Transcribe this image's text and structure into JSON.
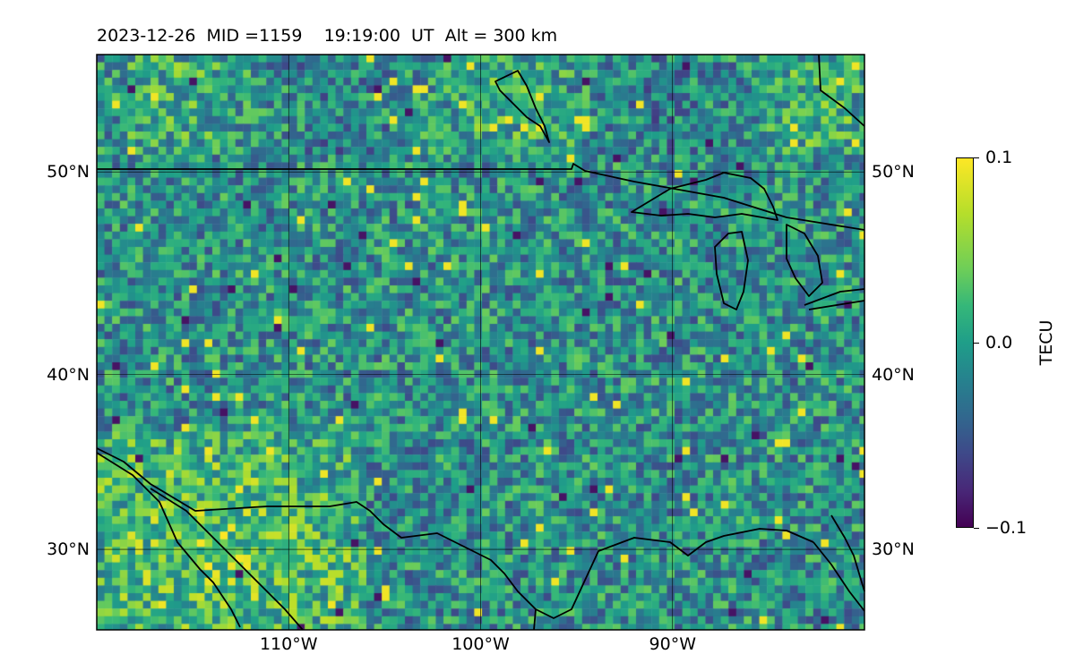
{
  "header": {
    "title": "2023-12-26  MID =1159    19:19:00  UT  Alt = 300 km"
  },
  "map": {
    "extent": {
      "lon_min": -120,
      "lon_max": -80,
      "lat_min": 25,
      "lat_max": 55
    },
    "lon_ticks": [
      {
        "value": -110,
        "label": "110°W"
      },
      {
        "value": -100,
        "label": "100°W"
      },
      {
        "value": -90,
        "label": "90°W"
      }
    ],
    "lat_ticks": [
      {
        "value": 30,
        "label": "30°N"
      },
      {
        "value": 40,
        "label": "40°N"
      },
      {
        "value": 50,
        "label": "50°N"
      }
    ],
    "gridlines": true,
    "coastlines": true,
    "colormap": "viridis",
    "features": [
      "US-Canada border",
      "Great Lakes",
      "Gulf of Mexico coast",
      "Mexico coastline"
    ]
  },
  "colorbar": {
    "label": "TECU",
    "min": -0.1,
    "max": 0.1,
    "ticks": [
      {
        "value": 0.1,
        "label": "0.1"
      },
      {
        "value": 0.0,
        "label": "0.0"
      },
      {
        "value": -0.1,
        "label": "−0.1"
      }
    ]
  },
  "colors": {
    "viridis": [
      "#440154",
      "#482878",
      "#3e4989",
      "#31688e",
      "#26828e",
      "#1f9e89",
      "#35b779",
      "#6ece58",
      "#b5de2b",
      "#fde725"
    ]
  }
}
